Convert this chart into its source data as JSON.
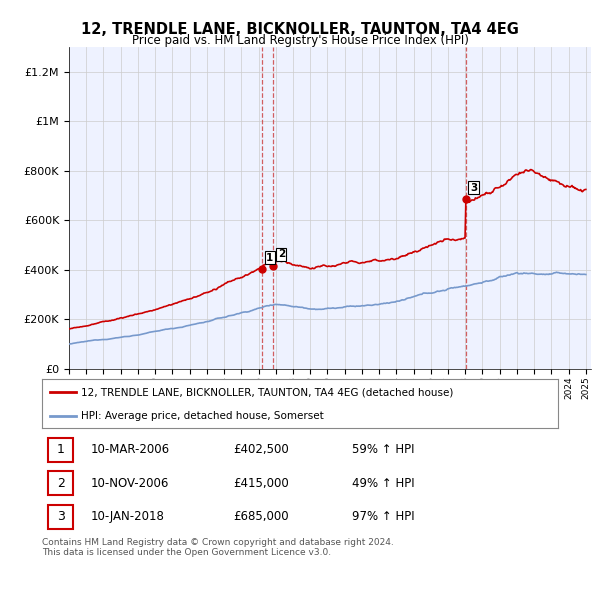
{
  "title": "12, TRENDLE LANE, BICKNOLLER, TAUNTON, TA4 4EG",
  "subtitle": "Price paid vs. HM Land Registry's House Price Index (HPI)",
  "yticks": [
    0,
    200000,
    400000,
    600000,
    800000,
    1000000,
    1200000
  ],
  "ytick_labels": [
    "£0",
    "£200K",
    "£400K",
    "£600K",
    "£800K",
    "£1M",
    "£1.2M"
  ],
  "sale1_date": 2006.19,
  "sale1_price": 402500,
  "sale2_date": 2006.86,
  "sale2_price": 415000,
  "sale3_date": 2018.03,
  "sale3_price": 685000,
  "property_color": "#cc0000",
  "hpi_color": "#7799cc",
  "background_color": "#eef2ff",
  "grid_color": "#cccccc",
  "vline_color": "#cc4444",
  "table_entries": [
    {
      "num": "1",
      "date": "10-MAR-2006",
      "price": "£402,500",
      "change": "59% ↑ HPI"
    },
    {
      "num": "2",
      "date": "10-NOV-2006",
      "price": "£415,000",
      "change": "49% ↑ HPI"
    },
    {
      "num": "3",
      "date": "10-JAN-2018",
      "price": "£685,000",
      "change": "97% ↑ HPI"
    }
  ],
  "footer": "Contains HM Land Registry data © Crown copyright and database right 2024.\nThis data is licensed under the Open Government Licence v3.0.",
  "legend_property": "12, TRENDLE LANE, BICKNOLLER, TAUNTON, TA4 4EG (detached house)",
  "legend_hpi": "HPI: Average price, detached house, Somerset"
}
